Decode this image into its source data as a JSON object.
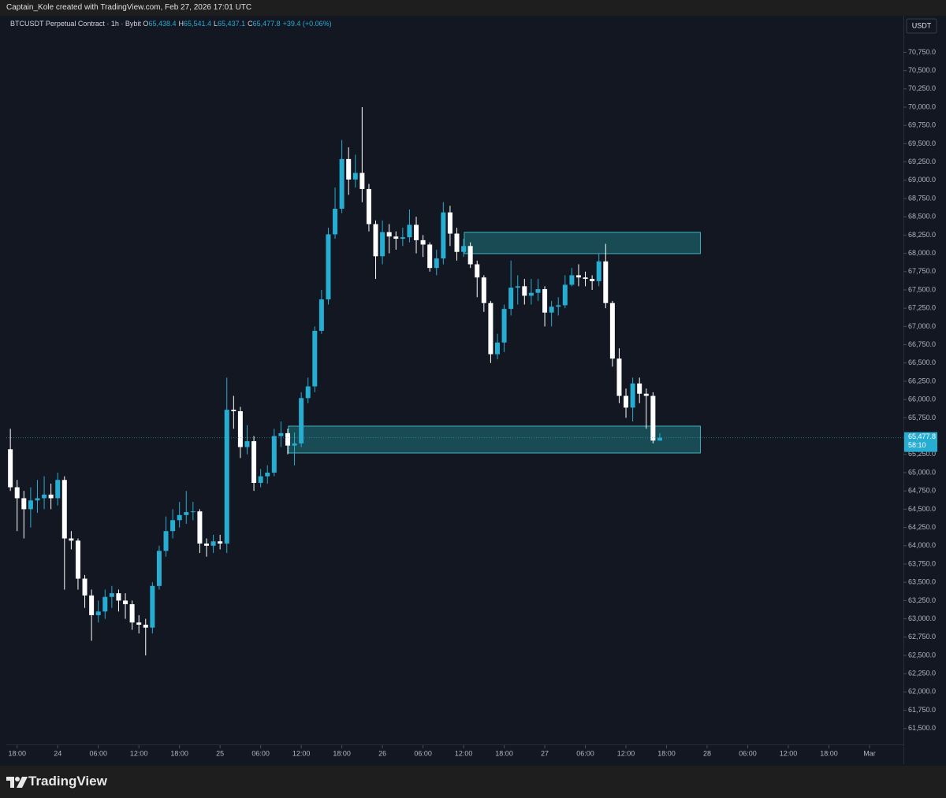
{
  "header": {
    "credit": "Captain_Kole created with TradingView.com, Feb 27, 2026 17:01 UTC"
  },
  "chart_data": {
    "type": "candlestick",
    "title": "BTCUSDT Perpetual Contract · 1h · Bybit",
    "ohlc_legend": [
      {
        "key": "O",
        "value": "65,438.4"
      },
      {
        "key": "H",
        "value": "65,541.4"
      },
      {
        "key": "L",
        "value": "65,437.1"
      },
      {
        "key": "C",
        "value": "65,477.8"
      }
    ],
    "change": "+39.4 (+0.06%)",
    "currency": "USDT",
    "open": [
      65320,
      64800,
      64650,
      64500,
      64620,
      64650,
      64700,
      64650,
      64900,
      64100,
      64070,
      63550,
      63320,
      63050,
      63100,
      63300,
      63350,
      63250,
      63200,
      62950,
      62920,
      62880,
      63450,
      63930,
      64200,
      64350,
      64420,
      64460,
      64470,
      64030,
      64000,
      64060,
      64030,
      65860,
      65840,
      65350,
      65430,
      64860,
      64950,
      65000,
      65500,
      65540,
      65370,
      65400,
      66020,
      66180,
      66940,
      67370,
      68260,
      68610,
      69290,
      69010,
      69100,
      68880,
      68400,
      67960,
      68290,
      68230,
      68200,
      68220,
      68390,
      68180,
      68120,
      67800,
      67930,
      68560,
      68270,
      68020,
      68100,
      67850,
      67670,
      67320,
      66620,
      66780,
      67240,
      67530,
      67550,
      67420,
      67460,
      67510,
      67190,
      67270,
      67290,
      67570,
      67700,
      67670,
      67650,
      67620,
      67890,
      67320,
      66560,
      66050,
      65890,
      66220,
      66080,
      66050,
      65438.4
    ],
    "high": [
      65600,
      64900,
      64750,
      64800,
      64900,
      64950,
      64850,
      65000,
      64950,
      64200,
      64100,
      63600,
      63400,
      63250,
      63400,
      63450,
      63400,
      63350,
      63250,
      63050,
      63000,
      63500,
      64000,
      64400,
      64500,
      64600,
      64750,
      64600,
      64500,
      64100,
      64150,
      64150,
      66300,
      66050,
      65900,
      65650,
      65500,
      65050,
      65100,
      65600,
      65700,
      65600,
      65550,
      66100,
      66300,
      67000,
      67500,
      68350,
      68900,
      69550,
      69450,
      69350,
      70000,
      68950,
      68450,
      68450,
      68400,
      68300,
      68350,
      68600,
      68500,
      68250,
      68150,
      68050,
      68700,
      68650,
      68350,
      68200,
      68150,
      67900,
      67700,
      67350,
      66900,
      67300,
      67900,
      67700,
      67650,
      67650,
      67650,
      67550,
      67350,
      67400,
      67700,
      67800,
      67850,
      67750,
      67700,
      68000,
      68130,
      67350,
      66700,
      66150,
      66300,
      66300,
      66150,
      66100,
      65541.4
    ],
    "low": [
      64750,
      64200,
      64100,
      64250,
      64450,
      64500,
      64500,
      64550,
      63400,
      63950,
      63400,
      63150,
      62700,
      62950,
      63000,
      63150,
      63100,
      63000,
      62850,
      62800,
      62500,
      62800,
      63400,
      63850,
      64100,
      64250,
      64300,
      64350,
      63900,
      63850,
      63900,
      63950,
      63900,
      65600,
      65200,
      65250,
      64750,
      64800,
      64850,
      64950,
      65350,
      65250,
      65100,
      65350,
      65950,
      66100,
      66900,
      67300,
      68200,
      68550,
      68800,
      68900,
      68700,
      68300,
      67650,
      67850,
      68000,
      68050,
      68100,
      68150,
      68000,
      67950,
      67750,
      67700,
      67850,
      68100,
      67900,
      67950,
      67800,
      67400,
      67200,
      66500,
      66550,
      66650,
      67150,
      67300,
      67300,
      67300,
      67350,
      67000,
      67000,
      67150,
      67250,
      67550,
      67550,
      67550,
      67500,
      67550,
      67250,
      66450,
      65950,
      65750,
      65700,
      65950,
      65600,
      65400,
      65437.1
    ],
    "close": [
      64800,
      64650,
      64500,
      64620,
      64650,
      64700,
      64650,
      64900,
      64100,
      64070,
      63550,
      63320,
      63050,
      63100,
      63300,
      63350,
      63250,
      63200,
      62950,
      62920,
      62880,
      63450,
      63930,
      64200,
      64350,
      64420,
      64460,
      64470,
      64030,
      64000,
      64060,
      64030,
      65860,
      65840,
      65350,
      65430,
      64860,
      64950,
      65000,
      65500,
      65540,
      65370,
      65400,
      66020,
      66180,
      66940,
      67370,
      68260,
      68610,
      69290,
      69010,
      69100,
      68880,
      68400,
      67960,
      68290,
      68230,
      68200,
      68220,
      68390,
      68180,
      68120,
      67800,
      67930,
      68560,
      68270,
      68020,
      68100,
      67850,
      67670,
      67320,
      66620,
      66780,
      67240,
      67530,
      67550,
      67420,
      67460,
      67510,
      67190,
      67270,
      67290,
      67570,
      67700,
      67670,
      67650,
      67620,
      67890,
      67320,
      66560,
      66050,
      65890,
      66220,
      66080,
      66050,
      65438.4,
      65477.8
    ],
    "up_color": "#27acd2",
    "down_color": "#ffffff",
    "grid": false,
    "xlim": [
      -0.6,
      131.9
    ],
    "xticks": [
      {
        "value": 1,
        "label": "18:00"
      },
      {
        "value": 7,
        "label": "24"
      },
      {
        "value": 13,
        "label": "06:00"
      },
      {
        "value": 19,
        "label": "12:00"
      },
      {
        "value": 25,
        "label": "18:00"
      },
      {
        "value": 31,
        "label": "25"
      },
      {
        "value": 37,
        "label": "06:00"
      },
      {
        "value": 43,
        "label": "12:00"
      },
      {
        "value": 49,
        "label": "18:00"
      },
      {
        "value": 55,
        "label": "26"
      },
      {
        "value": 61,
        "label": "06:00"
      },
      {
        "value": 67,
        "label": "12:00"
      },
      {
        "value": 73,
        "label": "18:00"
      },
      {
        "value": 79,
        "label": "27"
      },
      {
        "value": 85,
        "label": "06:00"
      },
      {
        "value": 91,
        "label": "12:00"
      },
      {
        "value": 97,
        "label": "18:00"
      },
      {
        "value": 103,
        "label": "28"
      },
      {
        "value": 109,
        "label": "06:00"
      },
      {
        "value": 115,
        "label": "12:00"
      },
      {
        "value": 121,
        "label": "18:00"
      },
      {
        "value": 127,
        "label": "Mar"
      }
    ],
    "ylim": [
      61282,
      71250
    ],
    "yticks": [
      {
        "value": 61500,
        "label": "61,500.0"
      },
      {
        "value": 61750,
        "label": "61,750.0"
      },
      {
        "value": 62000,
        "label": "62,000.0"
      },
      {
        "value": 62250,
        "label": "62,250.0"
      },
      {
        "value": 62500,
        "label": "62,500.0"
      },
      {
        "value": 62750,
        "label": "62,750.0"
      },
      {
        "value": 63000,
        "label": "63,000.0"
      },
      {
        "value": 63250,
        "label": "63,250.0"
      },
      {
        "value": 63500,
        "label": "63,500.0"
      },
      {
        "value": 63750,
        "label": "63,750.0"
      },
      {
        "value": 64000,
        "label": "64,000.0"
      },
      {
        "value": 64250,
        "label": "64,250.0"
      },
      {
        "value": 64500,
        "label": "64,500.0"
      },
      {
        "value": 64750,
        "label": "64,750.0"
      },
      {
        "value": 65000,
        "label": "65,000.0"
      },
      {
        "value": 65250,
        "label": "65,250.0"
      },
      {
        "value": 65500,
        "label": "65,500.0"
      },
      {
        "value": 65750,
        "label": "65,750.0"
      },
      {
        "value": 66000,
        "label": "66,000.0"
      },
      {
        "value": 66250,
        "label": "66,250.0"
      },
      {
        "value": 66500,
        "label": "66,500.0"
      },
      {
        "value": 66750,
        "label": "66,750.0"
      },
      {
        "value": 67000,
        "label": "67,000.0"
      },
      {
        "value": 67250,
        "label": "67,250.0"
      },
      {
        "value": 67500,
        "label": "67,500.0"
      },
      {
        "value": 67750,
        "label": "67,750.0"
      },
      {
        "value": 68000,
        "label": "68,000.0"
      },
      {
        "value": 68250,
        "label": "68,250.0"
      },
      {
        "value": 68500,
        "label": "68,500.0"
      },
      {
        "value": 68750,
        "label": "68,750.0"
      },
      {
        "value": 69000,
        "label": "69,000.0"
      },
      {
        "value": 69250,
        "label": "69,250.0"
      },
      {
        "value": 69500,
        "label": "69,500.0"
      },
      {
        "value": 69750,
        "label": "69,750.0"
      },
      {
        "value": 70000,
        "label": "70,000.0"
      },
      {
        "value": 70250,
        "label": "70,250.0"
      },
      {
        "value": 70500,
        "label": "70,500.0"
      },
      {
        "value": 70750,
        "label": "70,750.0"
      }
    ],
    "zones": [
      {
        "x": [
          67.1,
          102
        ],
        "y": [
          67996,
          68287
        ]
      },
      {
        "x": [
          41.1,
          102
        ],
        "y": [
          65269,
          65636
        ]
      }
    ],
    "zone_color": "#1b5e66",
    "last_price": {
      "value": 65477.8,
      "label": "65,477.8"
    },
    "countdown": "58:10"
  },
  "footer": {
    "brand": "TradingView"
  }
}
